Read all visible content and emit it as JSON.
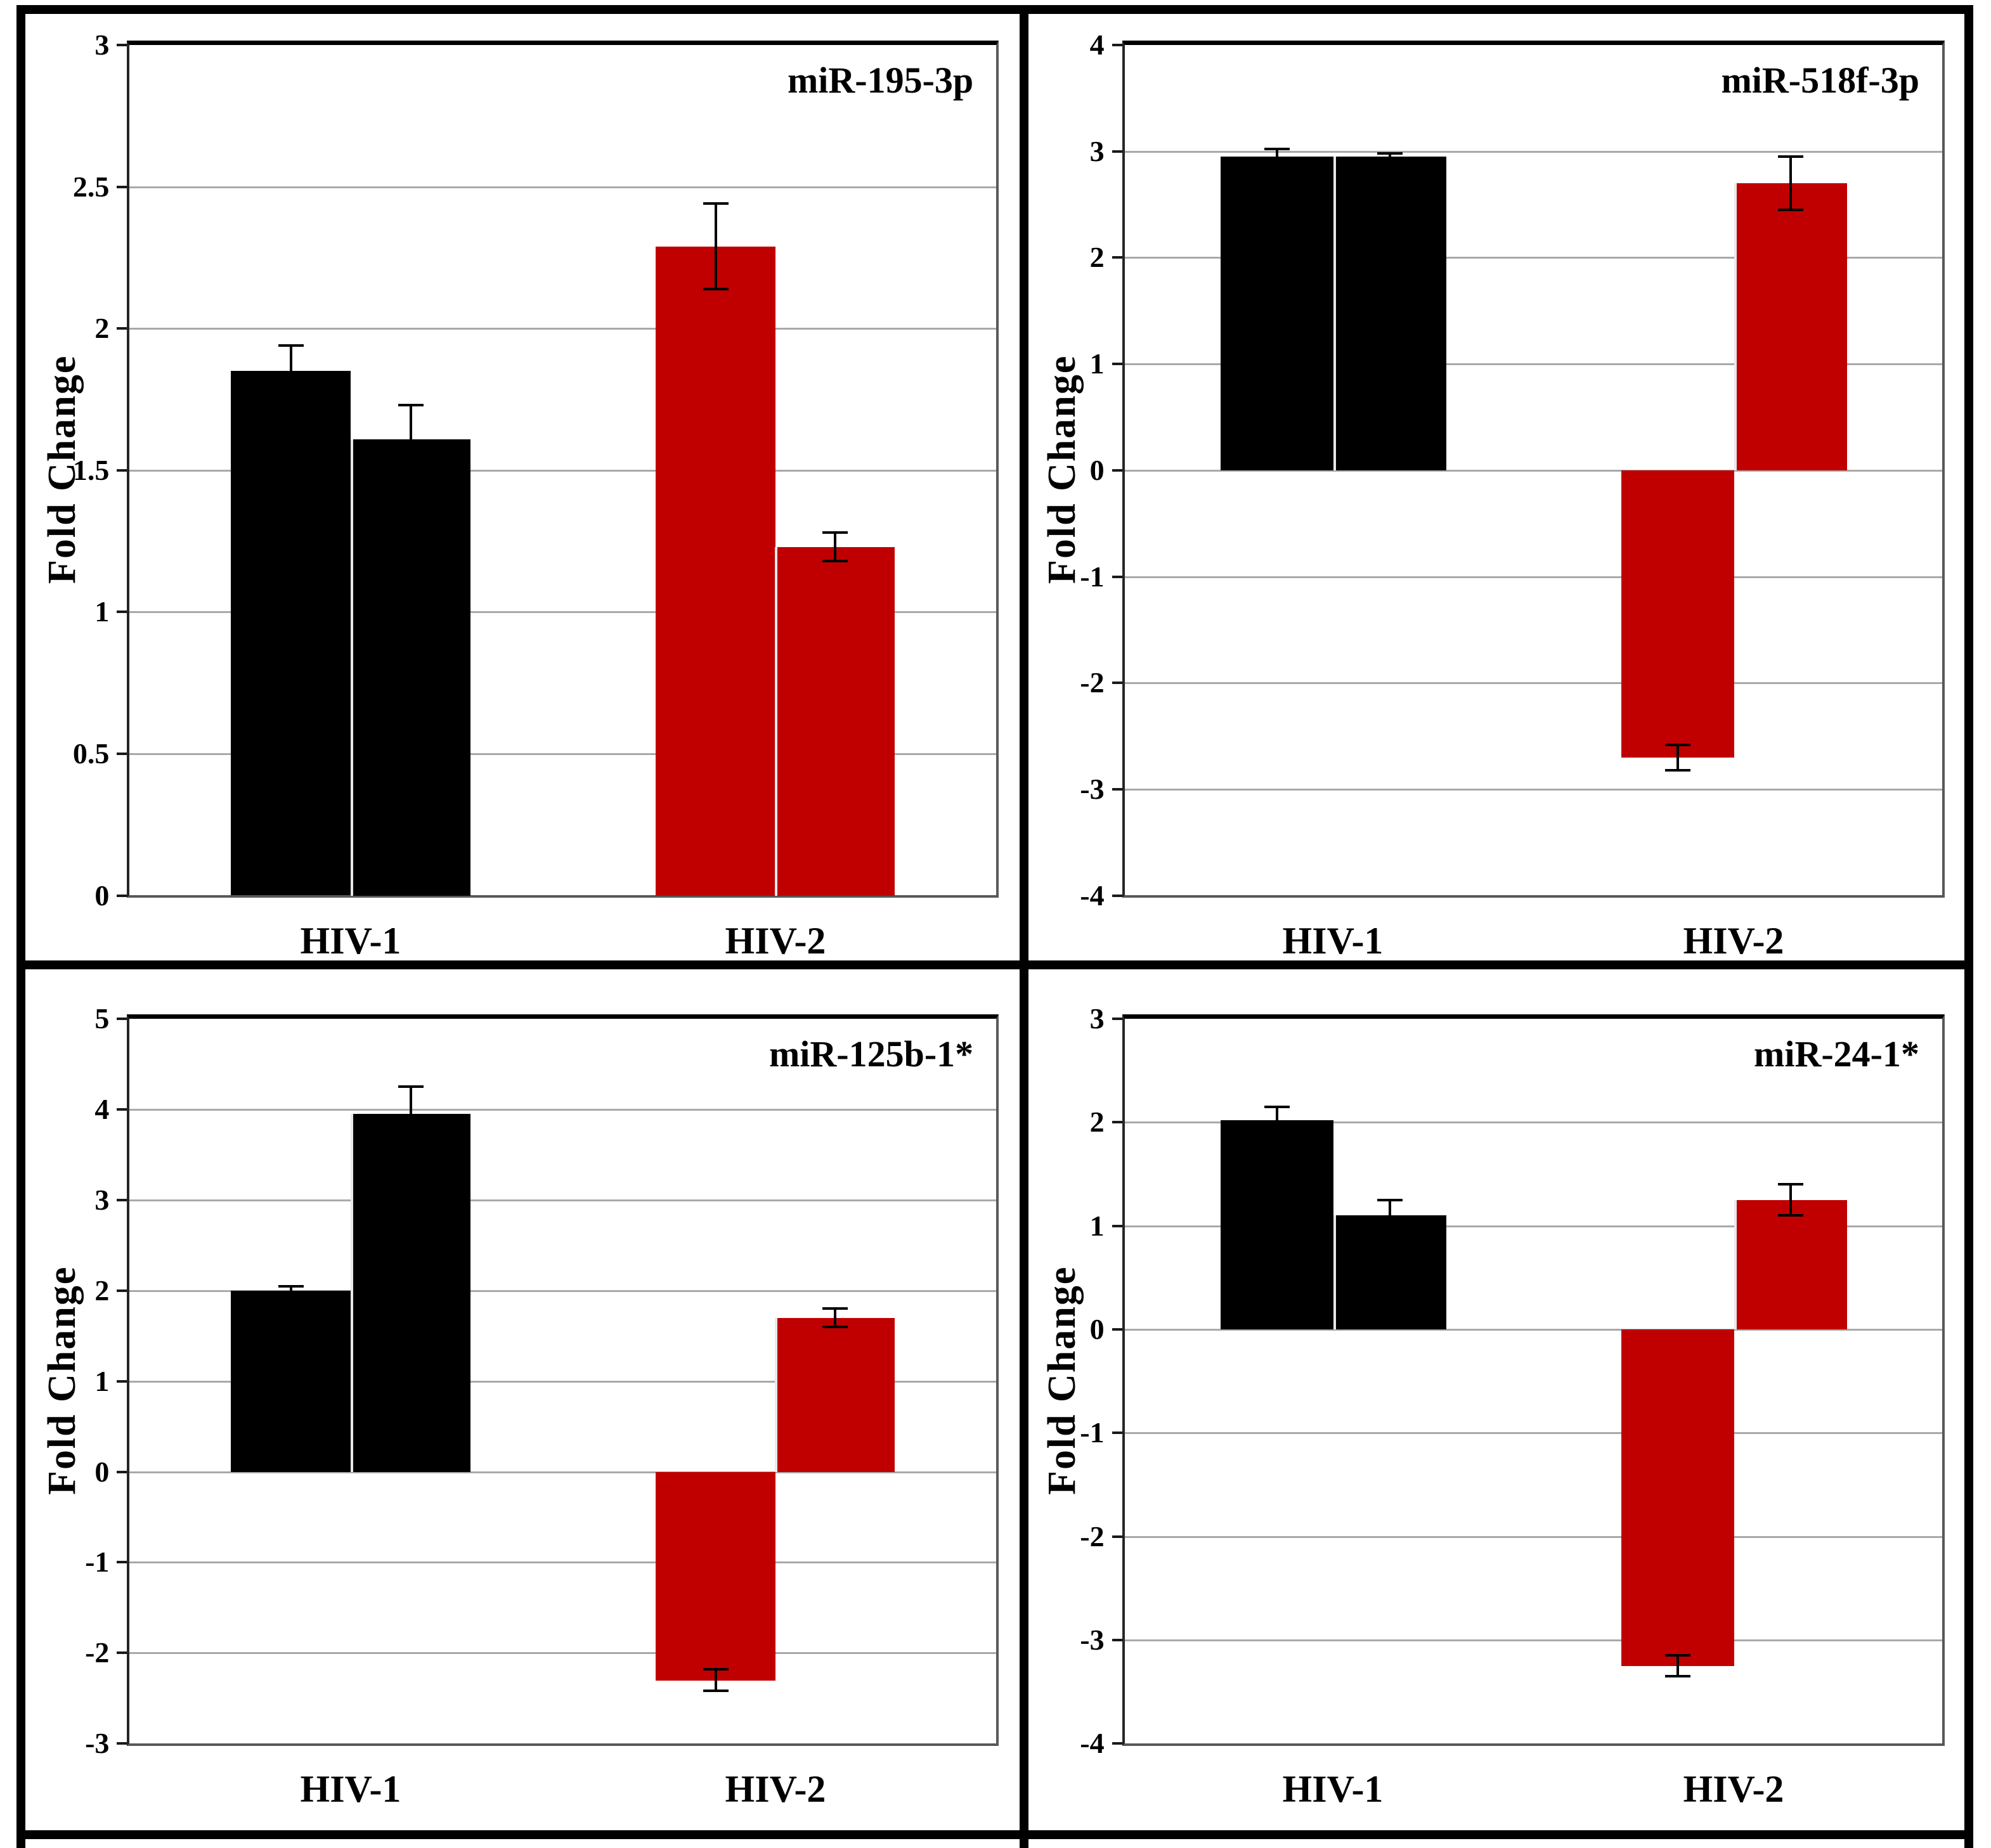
{
  "figure": {
    "background": "#ffffff",
    "border_color": "#000000",
    "gridline_color": "#a9a9a9",
    "bar_colors": {
      "HIV-1": "#000000",
      "HIV-2": "#c00000"
    }
  },
  "chart_data": [
    {
      "type": "bar",
      "title": "miR-195-3p",
      "ylabel": "Fold Change",
      "xlabel": "",
      "categories": [
        "HIV-1",
        "HIV-2"
      ],
      "ylim": [
        0,
        3
      ],
      "ytick_step": 0.5,
      "ytick_labels": [
        "3",
        "2.5",
        "2",
        "1.5",
        "1",
        "0.5",
        "0"
      ],
      "grid": true,
      "legend_position": "none",
      "groups": [
        {
          "label": "HIV-1",
          "color": "#000000",
          "bars": [
            {
              "value": 1.85,
              "error": 0.09
            },
            {
              "value": 1.61,
              "error": 0.12
            }
          ]
        },
        {
          "label": "HIV-2",
          "color": "#c00000",
          "bars": [
            {
              "value": 2.29,
              "error": 0.15
            },
            {
              "value": 1.23,
              "error": 0.05
            }
          ]
        }
      ]
    },
    {
      "type": "bar",
      "title": "miR-518f-3p",
      "ylabel": "Fold Change",
      "xlabel": "",
      "categories": [
        "HIV-1",
        "HIV-2"
      ],
      "ylim": [
        -4,
        4
      ],
      "ytick_step": 1,
      "ytick_labels": [
        "4",
        "3",
        "2",
        "1",
        "0",
        "-1",
        "-2",
        "-3",
        "-4"
      ],
      "grid": true,
      "legend_position": "none",
      "groups": [
        {
          "label": "HIV-1",
          "color": "#000000",
          "bars": [
            {
              "value": 2.95,
              "error": 0.07
            },
            {
              "value": 2.95,
              "error": 0.03
            }
          ]
        },
        {
          "label": "HIV-2",
          "color": "#c00000",
          "bars": [
            {
              "value": -2.7,
              "error": 0.12
            },
            {
              "value": 2.7,
              "error": 0.25
            }
          ]
        }
      ]
    },
    {
      "type": "bar",
      "title": "miR-125b-1*",
      "ylabel": "Fold Change",
      "xlabel": "",
      "categories": [
        "HIV-1",
        "HIV-2"
      ],
      "ylim": [
        -3,
        5
      ],
      "ytick_step": 1,
      "ytick_labels": [
        "5",
        "4",
        "3",
        "2",
        "1",
        "0",
        "-1",
        "-2",
        "-3"
      ],
      "grid": true,
      "legend_position": "none",
      "groups": [
        {
          "label": "HIV-1",
          "color": "#000000",
          "bars": [
            {
              "value": 2.0,
              "error": 0.05
            },
            {
              "value": 3.95,
              "error": 0.3
            }
          ]
        },
        {
          "label": "HIV-2",
          "color": "#c00000",
          "bars": [
            {
              "value": -2.3,
              "error": 0.12
            },
            {
              "value": 1.7,
              "error": 0.1
            }
          ]
        }
      ]
    },
    {
      "type": "bar",
      "title": "miR-24-1*",
      "ylabel": "Fold Change",
      "xlabel": "",
      "categories": [
        "HIV-1",
        "HIV-2"
      ],
      "ylim": [
        -4,
        3
      ],
      "ytick_step": 1,
      "ytick_labels": [
        "3",
        "2",
        "1",
        "0",
        "-1",
        "-2",
        "-3",
        "-4"
      ],
      "grid": true,
      "legend_position": "none",
      "groups": [
        {
          "label": "HIV-1",
          "color": "#000000",
          "bars": [
            {
              "value": 2.02,
              "error": 0.13
            },
            {
              "value": 1.1,
              "error": 0.15
            }
          ]
        },
        {
          "label": "HIV-2",
          "color": "#c00000",
          "bars": [
            {
              "value": -3.25,
              "error": 0.1
            },
            {
              "value": 1.25,
              "error": 0.15
            }
          ]
        }
      ]
    }
  ]
}
